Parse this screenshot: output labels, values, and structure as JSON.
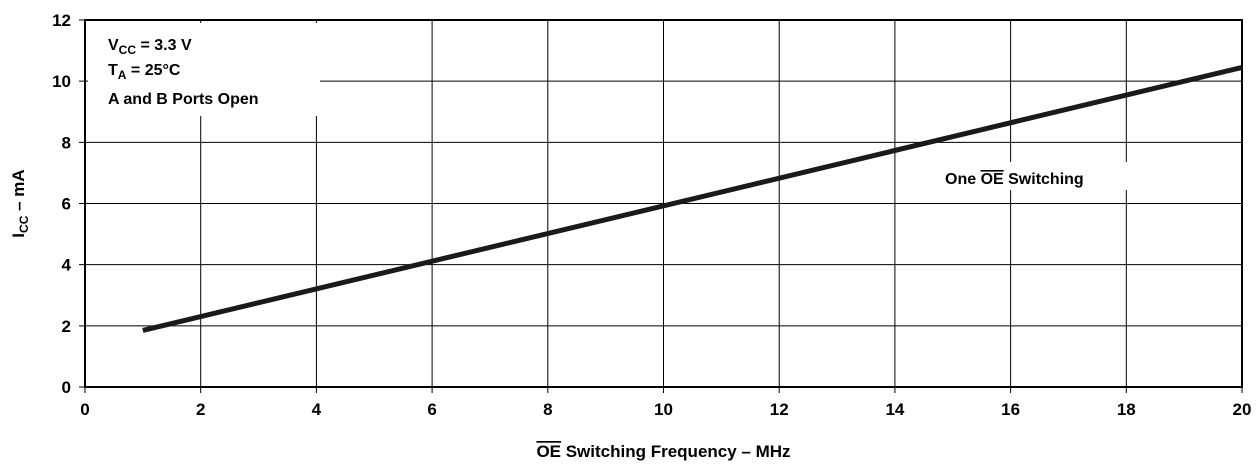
{
  "chart_data": {
    "type": "line",
    "x_axis": {
      "title_overlined": "OE",
      "title_rest": " Switching Frequency – MHz",
      "range": [
        0,
        20
      ],
      "ticks": [
        0,
        2,
        4,
        6,
        8,
        10,
        12,
        14,
        16,
        18,
        20
      ],
      "tick_labels": [
        "0",
        "2",
        "4",
        "6",
        "8",
        "10",
        "12",
        "14",
        "16",
        "18",
        "20"
      ]
    },
    "y_axis": {
      "title_main": "I",
      "title_sub": "CC",
      "title_rest": " – mA",
      "range": [
        0,
        12
      ],
      "ticks": [
        0,
        2,
        4,
        6,
        8,
        10,
        12
      ],
      "tick_labels": [
        "0",
        "2",
        "4",
        "6",
        "8",
        "10",
        "12"
      ]
    },
    "grid": true,
    "conditions": {
      "line1_main": "V",
      "line1_sub": "CC",
      "line1_rest": " = 3.3 V",
      "line2_main": "T",
      "line2_sub": "A",
      "line2_rest": " = 25°C",
      "line3": "A and B Ports Open"
    },
    "series": [
      {
        "name_pre": "One ",
        "name_overlined": "OE",
        "name_post": " Switching",
        "x": [
          1,
          20
        ],
        "y": [
          1.85,
          10.45
        ]
      }
    ],
    "colors": {
      "line": "#1a1a1a",
      "grid": "#000000",
      "background": "#ffffff"
    }
  }
}
